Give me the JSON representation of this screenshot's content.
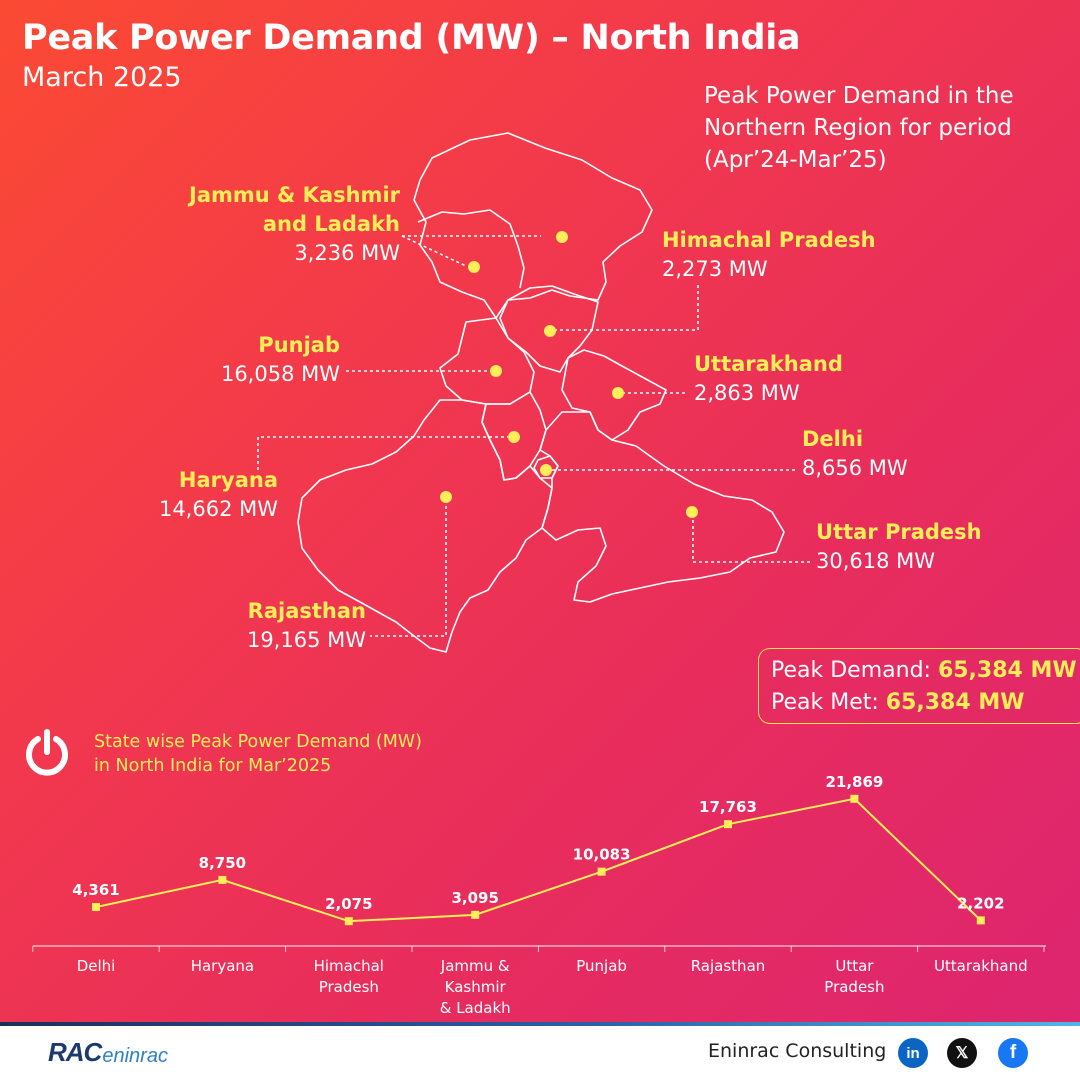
{
  "header": {
    "title": "Peak Power Demand (MW) – North India",
    "subtitle": "March 2025"
  },
  "region_note": {
    "line1": "Peak Power Demand in the",
    "line2": "Northern Region for period",
    "line3": "(Apr’24-Mar’25)"
  },
  "map_labels": {
    "jk": {
      "name1": "Jammu & Kashmir",
      "name2": "and Ladakh",
      "value": "3,236 MW"
    },
    "hp": {
      "name": "Himachal Pradesh",
      "value": "2,273 MW"
    },
    "pb": {
      "name": "Punjab",
      "value": "16,058 MW"
    },
    "uk": {
      "name": "Uttarakhand",
      "value": "2,863 MW"
    },
    "hr": {
      "name": "Haryana",
      "value": "14,662 MW"
    },
    "dl": {
      "name": "Delhi",
      "value": "8,656 MW"
    },
    "up": {
      "name": "Uttar Pradesh",
      "value": "30,618 MW"
    },
    "rj": {
      "name": "Rajasthan",
      "value": "19,165 MW"
    }
  },
  "summary": {
    "demand_label": "Peak Demand: ",
    "demand_value": "65,384 MW",
    "met_label": "Peak Met: ",
    "met_value": "65,384 MW"
  },
  "chart_caption": {
    "line1": "State wise Peak Power Demand (MW)",
    "line2": "in North India for Mar’2025"
  },
  "chart_data": {
    "type": "line",
    "title": "State wise Peak Power Demand (MW) in North India for Mar’2025",
    "categories": [
      "Delhi",
      "Haryana",
      "Himachal Pradesh",
      "Jammu & Kashmir & Ladakh",
      "Punjab",
      "Rajasthan",
      "Uttar Pradesh",
      "Uttarakhand"
    ],
    "category_lines": [
      [
        "Delhi"
      ],
      [
        "Haryana"
      ],
      [
        "Himachal",
        "Pradesh"
      ],
      [
        "Jammu &",
        "Kashmir",
        "& Ladakh"
      ],
      [
        "Punjab"
      ],
      [
        "Rajasthan"
      ],
      [
        "Uttar",
        "Pradesh"
      ],
      [
        "Uttarakhand"
      ]
    ],
    "values": [
      4361,
      8750,
      2075,
      3095,
      10083,
      17763,
      21869,
      2202
    ],
    "value_labels": [
      "4,361",
      "8,750",
      "2,075",
      "3,095",
      "10,083",
      "17,763",
      "21,869",
      "2,202"
    ],
    "ylim": [
      0,
      22000
    ],
    "grid": false,
    "line_color": "#ffee58"
  },
  "footer": {
    "logo_mark": "RAC",
    "logo_brand": "eninrac",
    "company": "Eninrac Consulting",
    "social_icons": [
      "linkedin-icon",
      "x-icon",
      "facebook-icon"
    ]
  },
  "colors": {
    "accent_yellow": "#ffee58",
    "text_white": "#ffffff"
  }
}
